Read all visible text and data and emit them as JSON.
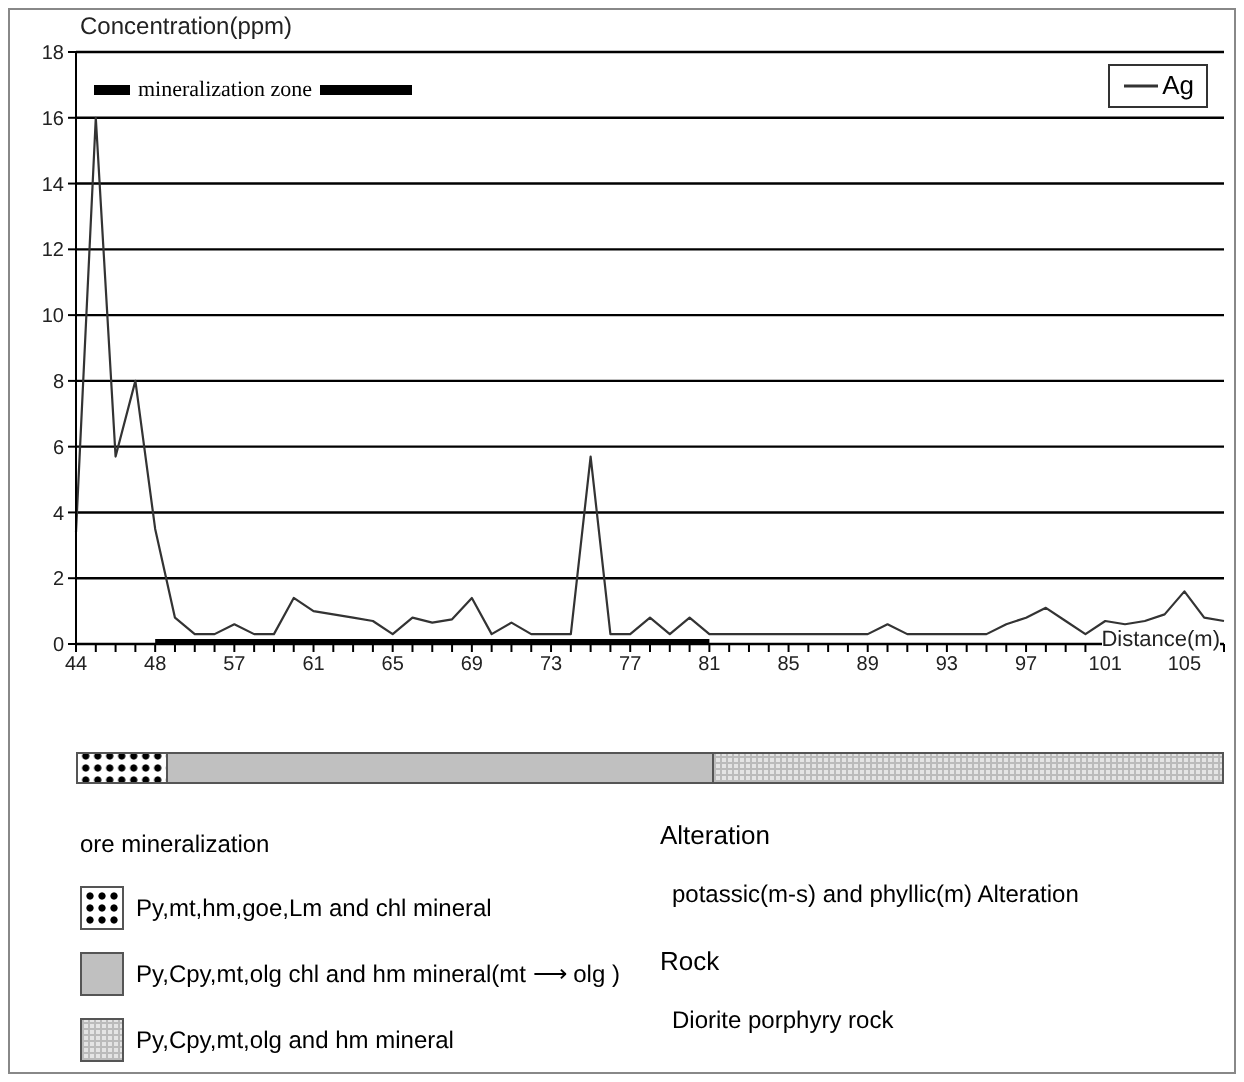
{
  "chart_data": {
    "type": "line",
    "ylabel": "Concentration(ppm)",
    "xlabel": "Distance(m)",
    "categories": [
      "44",
      null,
      null,
      null,
      "48",
      null,
      null,
      null,
      "57",
      null,
      null,
      null,
      "61",
      null,
      null,
      null,
      "65",
      null,
      null,
      null,
      "69",
      null,
      null,
      null,
      "73",
      null,
      null,
      null,
      "77",
      null,
      null,
      null,
      "81",
      null,
      null,
      null,
      "85",
      null,
      null,
      null,
      "89",
      null,
      null,
      null,
      "93",
      null,
      null,
      null,
      "97",
      null,
      null,
      null,
      "101",
      null,
      null,
      null,
      "105",
      null,
      null
    ],
    "series": [
      {
        "name": "Ag",
        "color": "#333333",
        "values": [
          3.4,
          16,
          5.7,
          8,
          3.5,
          0.8,
          0.3,
          0.3,
          0.6,
          0.3,
          0.3,
          1.4,
          1.0,
          0.9,
          0.8,
          0.7,
          0.3,
          0.8,
          0.65,
          0.75,
          1.4,
          0.3,
          0.65,
          0.3,
          0.3,
          0.3,
          5.7,
          0.3,
          0.3,
          0.8,
          0.3,
          0.8,
          0.3,
          0.3,
          0.3,
          0.3,
          0.3,
          0.3,
          0.3,
          0.3,
          0.3,
          0.6,
          0.3,
          0.3,
          0.3,
          0.3,
          0.3,
          0.6,
          0.8,
          1.1,
          0.7,
          0.3,
          0.7,
          0.6,
          0.7,
          0.9,
          1.6,
          0.8,
          0.7
        ]
      },
      {
        "name": "mineralization zone",
        "color": "#000000",
        "values": [
          null,
          null,
          null,
          null,
          0,
          0,
          0,
          0,
          0,
          0,
          0,
          0,
          0,
          0,
          0,
          0,
          0,
          0,
          0,
          0,
          0,
          0,
          0,
          0,
          0,
          0,
          0,
          0,
          0,
          0,
          0,
          0,
          0,
          null,
          null,
          null,
          null,
          null,
          null,
          null,
          null,
          null,
          null,
          null,
          null,
          null,
          null,
          null,
          null,
          null,
          null,
          null,
          null,
          null,
          null,
          null,
          null,
          null,
          null
        ]
      }
    ],
    "ylim": [
      0,
      18
    ],
    "yticks": [
      0,
      2,
      4,
      6,
      8,
      10,
      12,
      14,
      16,
      18
    ],
    "grid": "y",
    "legend": "top right",
    "marker": "none",
    "annotations": [
      "ore mineralization",
      "Py,mt,hm,goe,Lm and chl mineral",
      "Py,Cpy,mt,olg chl  and hm mineral(mt ⟶ olg )",
      "Py,Cpy,mt,olg and hm mineral",
      "Alteration",
      "potassic(m-s) and phyllic(m) Alteration",
      "Rock",
      "Diorite porphyry rock"
    ]
  }
}
